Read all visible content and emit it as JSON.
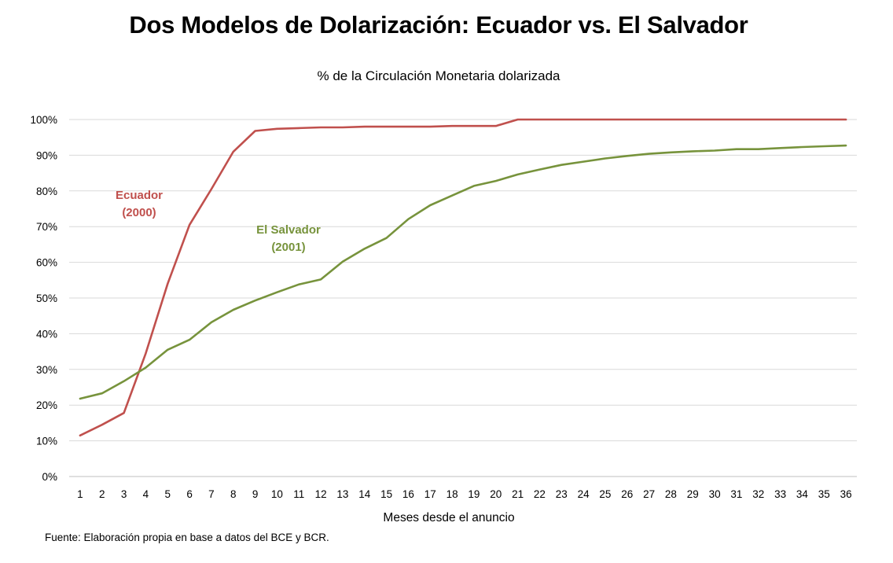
{
  "chart_data": {
    "type": "line",
    "title": "Dos Modelos de Dolarización: Ecuador vs. El Salvador",
    "subtitle": "% de la Circulación Monetaria dolarizada",
    "xlabel": "Meses desde el anuncio",
    "ylabel": "",
    "x": [
      1,
      2,
      3,
      4,
      5,
      6,
      7,
      8,
      9,
      10,
      11,
      12,
      13,
      14,
      15,
      16,
      17,
      18,
      19,
      20,
      21,
      22,
      23,
      24,
      25,
      26,
      27,
      28,
      29,
      30,
      31,
      32,
      33,
      34,
      35,
      36
    ],
    "ylim": [
      0,
      100
    ],
    "y_ticks": [
      "0%",
      "10%",
      "20%",
      "30%",
      "40%",
      "50%",
      "60%",
      "70%",
      "80%",
      "90%",
      "100%"
    ],
    "grid": true,
    "legend": "none",
    "series": [
      {
        "name": "Ecuador",
        "color": "#c0504d",
        "label_lines": [
          "Ecuador",
          "(2000)"
        ],
        "values": [
          11.5,
          14.5,
          17.8,
          34.5,
          54,
          70.5,
          80.5,
          91,
          96.8,
          97.4,
          97.6,
          97.8,
          97.8,
          98,
          98,
          98,
          98,
          98.2,
          98.2,
          98.2,
          100,
          100,
          100,
          100,
          100,
          100,
          100,
          100,
          100,
          100,
          100,
          100,
          100,
          100,
          100,
          100
        ]
      },
      {
        "name": "El Salvador",
        "color": "#77933c",
        "label_lines": [
          "El Salvador",
          "(2001)"
        ],
        "values": [
          21.8,
          23.3,
          26.7,
          30.5,
          35.5,
          38.3,
          43.2,
          46.7,
          49.3,
          51.6,
          53.8,
          55.2,
          60.2,
          63.8,
          66.8,
          72.1,
          76,
          78.7,
          81.4,
          82.8,
          84.6,
          86,
          87.3,
          88.2,
          89.1,
          89.8,
          90.4,
          90.8,
          91.1,
          91.3,
          91.7,
          91.7,
          92,
          92.3,
          92.5,
          92.7
        ]
      }
    ]
  },
  "footer": {
    "source": "Fuente: Elaboración propia en base a datos del BCE y BCR."
  }
}
